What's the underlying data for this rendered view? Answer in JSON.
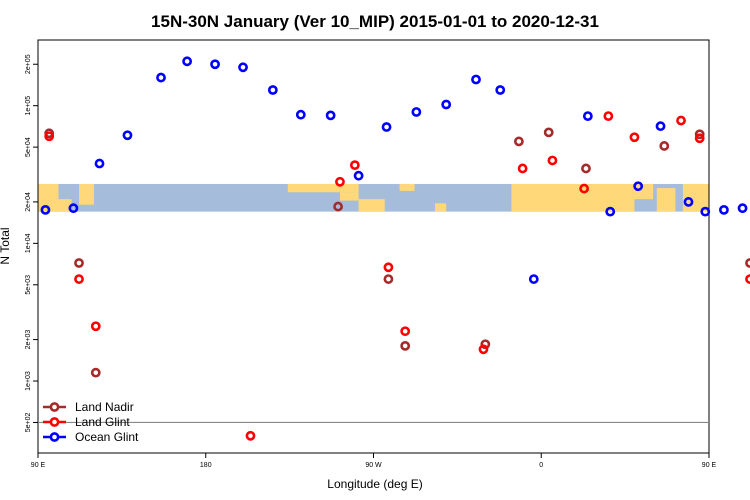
{
  "chart_data": {
    "type": "scatter",
    "title": "15N-30N January (Ver 10_MIP)   2015-01-01 to 2020-12-31",
    "xlabel": "Longitude (deg E)",
    "ylabel": "N Total",
    "x_scale": "linear",
    "y_scale": "log",
    "xlim": [
      90,
      450
    ],
    "ylim": [
      300,
      300000
    ],
    "x_ticks": [
      {
        "value": 90,
        "label": "90 E"
      },
      {
        "value": 180,
        "label": "180"
      },
      {
        "value": 270,
        "label": "90 W"
      },
      {
        "value": 360,
        "label": "0"
      },
      {
        "value": 450,
        "label": "90 E"
      },
      {
        "value": 540,
        "label": "180"
      }
    ],
    "y_ticks": [
      {
        "value": 200000,
        "label": "2e+05"
      },
      {
        "value": 100000,
        "label": "1e+05"
      },
      {
        "value": 50000,
        "label": "5e+04"
      },
      {
        "value": 20000,
        "label": "2e+04"
      },
      {
        "value": 10000,
        "label": "1e+04"
      },
      {
        "value": 5000,
        "label": "5e+03"
      },
      {
        "value": 2000,
        "label": "2e+03"
      },
      {
        "value": 1000,
        "label": "1e+03"
      },
      {
        "value": 500,
        "label": "5e+02"
      }
    ],
    "reference_line": {
      "y": 500
    },
    "map_band": {
      "y_bottom": 17000,
      "y_top": 27000,
      "land_color": "#FFD979",
      "ocean_color": "#A5BCDA"
    },
    "grid": false,
    "legend_position": "bottom-left",
    "series": [
      {
        "name": "Land Nadir",
        "color": "#A52A2A",
        "points": [
          {
            "x": 96,
            "y": 63000
          },
          {
            "x": 112,
            "y": 7200
          },
          {
            "x": 121,
            "y": 1150
          },
          {
            "x": 251,
            "y": 18500
          },
          {
            "x": 278,
            "y": 5500
          },
          {
            "x": 287,
            "y": 1800
          },
          {
            "x": 330,
            "y": 1850
          },
          {
            "x": 348,
            "y": 55000
          },
          {
            "x": 364,
            "y": 64000
          },
          {
            "x": 384,
            "y": 35000
          },
          {
            "x": 426,
            "y": 51000
          },
          {
            "x": 445,
            "y": 62000
          },
          {
            "x": 472,
            "y": 7200
          },
          {
            "x": 480,
            "y": 1150
          }
        ]
      },
      {
        "name": "Land Glint",
        "color": "#FF0000",
        "points": [
          {
            "x": 96,
            "y": 60000
          },
          {
            "x": 112,
            "y": 5500
          },
          {
            "x": 121,
            "y": 2500
          },
          {
            "x": 204,
            "y": 400
          },
          {
            "x": 252,
            "y": 28000
          },
          {
            "x": 260,
            "y": 37000
          },
          {
            "x": 278,
            "y": 6700
          },
          {
            "x": 287,
            "y": 2300
          },
          {
            "x": 329,
            "y": 1700
          },
          {
            "x": 350,
            "y": 35000
          },
          {
            "x": 366,
            "y": 40000
          },
          {
            "x": 383,
            "y": 25000
          },
          {
            "x": 396,
            "y": 84000
          },
          {
            "x": 410,
            "y": 59000
          },
          {
            "x": 435,
            "y": 78000
          },
          {
            "x": 445,
            "y": 58000
          },
          {
            "x": 472,
            "y": 5500
          },
          {
            "x": 480,
            "y": 2500
          }
        ]
      },
      {
        "name": "Ocean Glint",
        "color": "#0000FF",
        "points": [
          {
            "x": 94,
            "y": 17500
          },
          {
            "x": 109,
            "y": 18000
          },
          {
            "x": 123,
            "y": 38000
          },
          {
            "x": 138,
            "y": 61000
          },
          {
            "x": 156,
            "y": 160000
          },
          {
            "x": 170,
            "y": 210000
          },
          {
            "x": 185,
            "y": 200000
          },
          {
            "x": 200,
            "y": 190000
          },
          {
            "x": 216,
            "y": 130000
          },
          {
            "x": 231,
            "y": 86000
          },
          {
            "x": 247,
            "y": 85000
          },
          {
            "x": 262,
            "y": 31000
          },
          {
            "x": 277,
            "y": 70000
          },
          {
            "x": 293,
            "y": 90000
          },
          {
            "x": 309,
            "y": 102000
          },
          {
            "x": 325,
            "y": 155000
          },
          {
            "x": 338,
            "y": 130000
          },
          {
            "x": 356,
            "y": 5500
          },
          {
            "x": 385,
            "y": 84000
          },
          {
            "x": 397,
            "y": 17000
          },
          {
            "x": 412,
            "y": 26000
          },
          {
            "x": 424,
            "y": 71000
          },
          {
            "x": 439,
            "y": 20000
          },
          {
            "x": 448,
            "y": 17000
          },
          {
            "x": 458,
            "y": 17500
          },
          {
            "x": 468,
            "y": 18000
          }
        ]
      }
    ]
  }
}
